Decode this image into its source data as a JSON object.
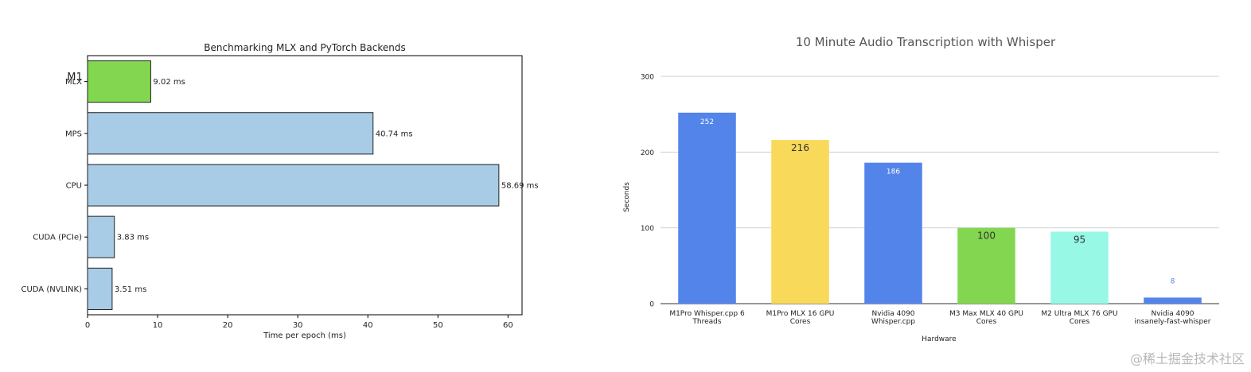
{
  "chart_data": [
    {
      "type": "bar",
      "orientation": "horizontal",
      "title": "Benchmarking MLX and PyTorch Backends",
      "xlabel": "Time per epoch (ms)",
      "ylabel": "",
      "xlim": [
        0,
        62
      ],
      "xticks": [
        "0",
        "10",
        "20",
        "30",
        "40",
        "50",
        "60"
      ],
      "group_label": "M1",
      "categories": [
        "MLX",
        "MPS",
        "CPU",
        "CUDA (PCIe)",
        "CUDA (NVLINK)"
      ],
      "values": [
        9.02,
        40.74,
        58.69,
        3.83,
        3.51
      ],
      "value_labels": [
        "9.02 ms",
        "40.74 ms",
        "58.69 ms",
        "3.83 ms",
        "3.51 ms"
      ],
      "colors": [
        "#82d650",
        "#a8cce6",
        "#a8cce6",
        "#a8cce6",
        "#a8cce6"
      ],
      "grid": false
    },
    {
      "type": "bar",
      "orientation": "vertical",
      "title": "10 Minute Audio Transcription with Whisper",
      "xlabel": "Hardware",
      "ylabel": "Seconds",
      "ylim": [
        0,
        300
      ],
      "yticks": [
        "0",
        "100",
        "200",
        "300"
      ],
      "categories": [
        [
          "M1Pro Whisper.cpp 6",
          "Threads"
        ],
        [
          "M1Pro MLX 16 GPU",
          "Cores"
        ],
        [
          "Nvidia 4090",
          "Whisper.cpp"
        ],
        [
          "M3 Max MLX 40 GPU",
          "Cores"
        ],
        [
          "M2 Ultra MLX 76 GPU",
          "Cores"
        ],
        [
          "Nvidia 4090",
          "insanely-fast-whisper"
        ]
      ],
      "values": [
        252,
        216,
        186,
        100,
        95,
        8
      ],
      "value_labels": [
        "252",
        "216",
        "186",
        "100",
        "95",
        "8"
      ],
      "colors": [
        "#5384ea",
        "#f8d95a",
        "#5384ea",
        "#82d650",
        "#97f8e6",
        "#5384ea"
      ],
      "grid": true
    }
  ],
  "watermark": "@稀土掘金技术社区"
}
